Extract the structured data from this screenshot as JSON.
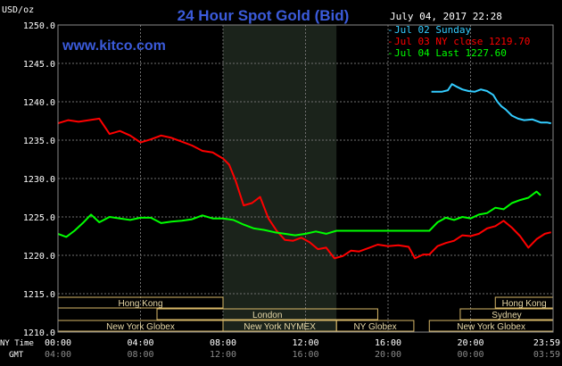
{
  "chart_data": {
    "type": "line",
    "title": "24 Hour Spot Gold (Bid)",
    "website": "www.kitco.com",
    "timestamp": "July 04, 2017 22:28",
    "ylabel": "USD/oz",
    "ylim": [
      1210.0,
      1250.0
    ],
    "y_ticks": [
      {
        "value": 1250.0,
        "label": "1250.0"
      },
      {
        "value": 1245.0,
        "label": "1245.0"
      },
      {
        "value": 1240.0,
        "label": "1240.0"
      },
      {
        "value": 1235.0,
        "label": "1235.0"
      },
      {
        "value": 1230.0,
        "label": "1230.0"
      },
      {
        "value": 1225.0,
        "label": "1225.0"
      },
      {
        "value": 1220.0,
        "label": "1220.0"
      },
      {
        "value": 1215.0,
        "label": "1215.0"
      },
      {
        "value": 1210.0,
        "label": "1210.0"
      }
    ],
    "x_range": [
      0,
      24
    ],
    "x_tick_values": [
      0,
      4,
      8,
      12,
      16,
      20,
      24
    ],
    "x_ticks_ny": [
      "00:00",
      "04:00",
      "08:00",
      "12:00",
      "16:00",
      "20:00",
      "23:59"
    ],
    "x_ticks_gmt": [
      "04:00",
      "08:00",
      "12:00",
      "16:00",
      "20:00",
      "00:00",
      "03:59"
    ],
    "x_row_labels": {
      "ny": "NY Time",
      "gmt": "GMT"
    },
    "shaded_region": [
      8,
      13.5
    ],
    "legend": [
      {
        "label": "Jul 02 Sunday",
        "color": "#33ccff"
      },
      {
        "label": "Jul 03 NY close 1219.70",
        "color": "#ff0000"
      },
      {
        "label": "Jul 04 Last 1227.60",
        "color": "#00ff00"
      }
    ],
    "series": [
      {
        "color": "#33ccff",
        "x": [
          18.1,
          18.6,
          18.9,
          19.1,
          19.3,
          19.6,
          19.9,
          20.2,
          20.5,
          20.8,
          21.1,
          21.3,
          21.5,
          21.7,
          22.0,
          22.3,
          22.6,
          23.0,
          23.4,
          23.7,
          23.9
        ],
        "y": [
          1241.3,
          1241.3,
          1241.5,
          1242.3,
          1242.0,
          1241.6,
          1241.4,
          1241.3,
          1241.6,
          1241.4,
          1240.9,
          1240.0,
          1239.4,
          1239.0,
          1238.2,
          1237.8,
          1237.6,
          1237.7,
          1237.3,
          1237.3,
          1237.2
        ]
      },
      {
        "color": "#ff0000",
        "x": [
          0.0,
          0.5,
          1.0,
          1.5,
          2.0,
          2.5,
          3.0,
          3.5,
          4.0,
          4.5,
          5.0,
          5.5,
          6.0,
          6.5,
          7.0,
          7.5,
          8.0,
          8.3,
          8.6,
          9.0,
          9.4,
          9.8,
          10.2,
          10.6,
          11.0,
          11.4,
          11.8,
          12.2,
          12.6,
          13.0,
          13.4,
          13.8,
          14.2,
          14.6,
          15.0,
          15.5,
          16.0,
          16.5,
          17.0,
          17.3,
          17.7,
          18.0,
          18.4,
          18.8,
          19.2,
          19.6,
          20.0,
          20.4,
          20.8,
          21.2,
          21.6,
          22.0,
          22.4,
          22.8,
          23.2,
          23.6,
          23.9
        ],
        "y": [
          1237.2,
          1237.6,
          1237.4,
          1237.6,
          1237.8,
          1235.8,
          1236.2,
          1235.6,
          1234.7,
          1235.1,
          1235.6,
          1235.3,
          1234.8,
          1234.3,
          1233.6,
          1233.4,
          1232.6,
          1231.8,
          1229.8,
          1226.5,
          1226.8,
          1227.6,
          1224.8,
          1223.2,
          1222.0,
          1221.9,
          1222.3,
          1221.7,
          1220.8,
          1221.0,
          1219.6,
          1219.9,
          1220.6,
          1220.5,
          1220.9,
          1221.4,
          1221.2,
          1221.3,
          1221.1,
          1219.6,
          1220.1,
          1220.1,
          1221.2,
          1221.6,
          1221.9,
          1222.6,
          1222.5,
          1222.8,
          1223.5,
          1223.8,
          1224.5,
          1223.6,
          1222.5,
          1221.0,
          1222.1,
          1222.8,
          1223.0
        ]
      },
      {
        "color": "#00ff00",
        "x": [
          0.0,
          0.4,
          0.8,
          1.2,
          1.6,
          2.0,
          2.5,
          3.0,
          3.5,
          4.0,
          4.5,
          5.0,
          5.5,
          6.0,
          6.5,
          7.0,
          7.5,
          8.0,
          8.5,
          9.0,
          9.5,
          10.0,
          10.5,
          11.0,
          11.5,
          12.0,
          12.5,
          13.0,
          13.5,
          14.0,
          15.0,
          16.0,
          17.0,
          18.0,
          18.4,
          18.8,
          19.2,
          19.6,
          20.0,
          20.4,
          20.8,
          21.2,
          21.6,
          22.0,
          22.4,
          22.8,
          23.2,
          23.4
        ],
        "y": [
          1222.8,
          1222.4,
          1223.2,
          1224.2,
          1225.3,
          1224.3,
          1225.0,
          1224.8,
          1224.6,
          1224.9,
          1224.9,
          1224.2,
          1224.4,
          1224.5,
          1224.7,
          1225.2,
          1224.8,
          1224.8,
          1224.6,
          1224.0,
          1223.5,
          1223.3,
          1223.0,
          1222.8,
          1222.6,
          1222.8,
          1223.1,
          1222.8,
          1223.2,
          1223.2,
          1223.2,
          1223.2,
          1223.2,
          1223.2,
          1224.3,
          1224.9,
          1224.6,
          1225.0,
          1224.8,
          1225.3,
          1225.5,
          1226.2,
          1226.0,
          1226.8,
          1227.2,
          1227.5,
          1228.3,
          1227.8
        ]
      }
    ],
    "sessions": [
      {
        "label": "Hong Kong",
        "start": 0,
        "end": 8,
        "row": 0
      },
      {
        "label": "London",
        "start": 4.8,
        "end": 15.5,
        "row": 1
      },
      {
        "label": "New York Globex",
        "start": 0,
        "end": 8,
        "row": 2
      },
      {
        "label": "New York NYMEX",
        "start": 8,
        "end": 13.5,
        "row": 2
      },
      {
        "label": "NY Globex",
        "start": 13.5,
        "end": 17.25,
        "row": 2
      },
      {
        "label": "Hong Kong",
        "start": 21.2,
        "end": 24,
        "row": 0
      },
      {
        "label": "Sydney",
        "start": 19.5,
        "end": 24,
        "row": 1
      },
      {
        "label": "New York Globex",
        "start": 18,
        "end": 24,
        "row": 2
      }
    ]
  }
}
